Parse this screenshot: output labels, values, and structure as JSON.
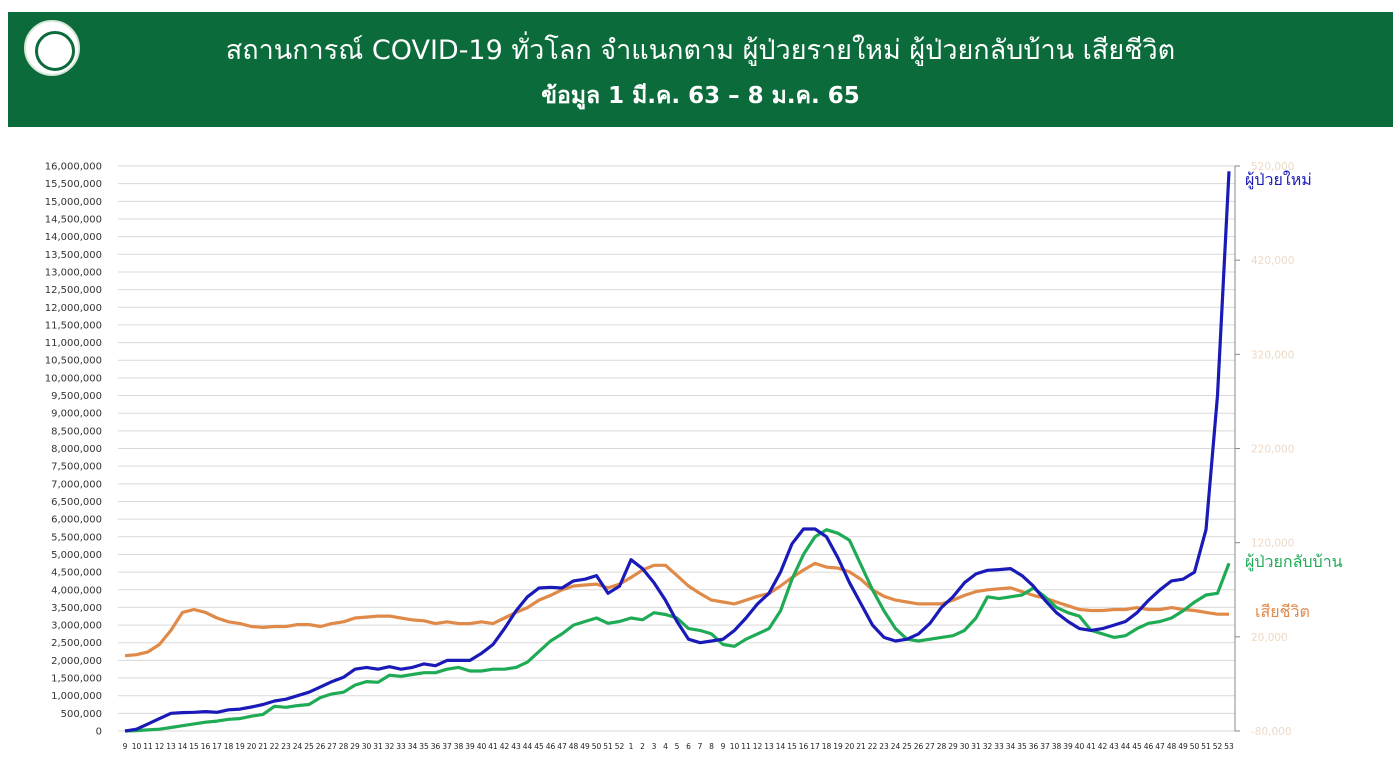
{
  "header": {
    "title": "สถานการณ์ COVID-19 ทั่วโลก จำแนกตาม ผู้ป่วยรายใหม่ ผู้ป่วยกลับบ้าน เสียชีวิต",
    "subtitle": "ข้อมูล 1 มี.ค. 63 –  8 ม.ค. 65"
  },
  "chart_data": {
    "type": "line",
    "title": "",
    "grid": true,
    "categories": [
      "9",
      "10",
      "11",
      "12",
      "13",
      "14",
      "15",
      "16",
      "17",
      "18",
      "19",
      "20",
      "21",
      "22",
      "23",
      "24",
      "25",
      "26",
      "27",
      "28",
      "29",
      "30",
      "31",
      "32",
      "33",
      "34",
      "35",
      "36",
      "37",
      "38",
      "39",
      "40",
      "41",
      "42",
      "43",
      "44",
      "45",
      "46",
      "47",
      "48",
      "49",
      "50",
      "51",
      "52",
      "1",
      "2",
      "3",
      "4",
      "5",
      "6",
      "7",
      "8",
      "9",
      "10",
      "11",
      "12",
      "13",
      "14",
      "15",
      "16",
      "17",
      "18",
      "19",
      "20",
      "21",
      "22",
      "23",
      "24",
      "25",
      "26",
      "27",
      "28",
      "29",
      "30",
      "31",
      "32",
      "33",
      "34",
      "35",
      "36",
      "37",
      "38",
      "39",
      "40",
      "41",
      "42",
      "43",
      "44",
      "45",
      "46",
      "47",
      "48",
      "49",
      "50",
      "51",
      "52",
      "53"
    ],
    "y_left": {
      "min": 0,
      "max": 16000000,
      "step": 500000
    },
    "y_right": {
      "min": -80000,
      "max": 520000,
      "ticks": [
        -80000,
        20000,
        120000,
        220000,
        320000,
        420000,
        520000
      ]
    },
    "series": [
      {
        "name": "ผู้ป่วยใหม่",
        "axis": "left",
        "color": "#1a1ab8",
        "values": [
          0,
          50000,
          200000,
          350000,
          500000,
          520000,
          530000,
          550000,
          530000,
          600000,
          620000,
          680000,
          750000,
          850000,
          900000,
          1000000,
          1100000,
          1250000,
          1400000,
          1520000,
          1750000,
          1800000,
          1750000,
          1820000,
          1750000,
          1800000,
          1900000,
          1850000,
          2000000,
          2000000,
          2000000,
          2200000,
          2450000,
          2900000,
          3400000,
          3800000,
          4050000,
          4070000,
          4050000,
          4250000,
          4300000,
          4400000,
          3900000,
          4100000,
          4850000,
          4600000,
          4200000,
          3700000,
          3100000,
          2600000,
          2500000,
          2550000,
          2600000,
          2850000,
          3200000,
          3600000,
          3900000,
          4500000,
          5300000,
          5720000,
          5720000,
          5500000,
          4900000,
          4200000,
          3600000,
          3000000,
          2650000,
          2550000,
          2600000,
          2750000,
          3050000,
          3500000,
          3800000,
          4200000,
          4450000,
          4550000,
          4570000,
          4600000,
          4400000,
          4100000,
          3700000,
          3350000,
          3100000,
          2900000,
          2850000,
          2900000,
          3000000,
          3100000,
          3350000,
          3700000,
          4000000,
          4250000,
          4300000,
          4500000,
          5700000,
          9500000,
          15850000
        ]
      },
      {
        "name": "ผู้ป่วยกลับบ้าน",
        "axis": "left",
        "color": "#1faa55",
        "values": [
          0,
          10000,
          30000,
          50000,
          100000,
          150000,
          200000,
          250000,
          280000,
          330000,
          350000,
          420000,
          470000,
          700000,
          670000,
          720000,
          750000,
          950000,
          1050000,
          1100000,
          1300000,
          1400000,
          1380000,
          1580000,
          1550000,
          1600000,
          1650000,
          1650000,
          1750000,
          1800000,
          1700000,
          1700000,
          1750000,
          1750000,
          1800000,
          1950000,
          2250000,
          2550000,
          2750000,
          3000000,
          3100000,
          3200000,
          3050000,
          3100000,
          3200000,
          3150000,
          3350000,
          3300000,
          3200000,
          2900000,
          2850000,
          2750000,
          2450000,
          2400000,
          2600000,
          2750000,
          2900000,
          3400000,
          4300000,
          5000000,
          5500000,
          5700000,
          5600000,
          5400000,
          4700000,
          4000000,
          3400000,
          2900000,
          2600000,
          2550000,
          2600000,
          2650000,
          2700000,
          2850000,
          3200000,
          3800000,
          3750000,
          3800000,
          3850000,
          4050000,
          3800000,
          3500000,
          3350000,
          3250000,
          2850000,
          2750000,
          2650000,
          2700000,
          2900000,
          3050000,
          3100000,
          3200000,
          3400000,
          3650000,
          3850000,
          3900000,
          4750000
        ]
      },
      {
        "name": "เสียชีวิต",
        "axis": "right",
        "color": "#e08a4a",
        "values": [
          0,
          1000,
          4000,
          12000,
          27000,
          46000,
          49000,
          46000,
          40000,
          36000,
          34000,
          31000,
          30000,
          31000,
          31000,
          33000,
          33000,
          31000,
          34000,
          36000,
          40000,
          41000,
          42000,
          42000,
          40000,
          38000,
          37000,
          34000,
          36000,
          34000,
          34000,
          36000,
          34000,
          40000,
          46000,
          51000,
          59000,
          64000,
          70000,
          74000,
          75000,
          76000,
          72000,
          76000,
          83000,
          91000,
          96000,
          96000,
          85000,
          74000,
          66000,
          59000,
          57000,
          55000,
          59000,
          63000,
          66000,
          74000,
          83000,
          91000,
          98000,
          94000,
          93000,
          89000,
          81000,
          70000,
          63000,
          59000,
          57000,
          55000,
          55000,
          55000,
          59000,
          64000,
          68000,
          70000,
          71000,
          72000,
          68000,
          64000,
          61000,
          57000,
          53000,
          49000,
          48000,
          48000,
          49000,
          49000,
          51000,
          49000,
          49000,
          51000,
          49000,
          48000,
          46000,
          44000,
          44000
        ]
      }
    ]
  }
}
